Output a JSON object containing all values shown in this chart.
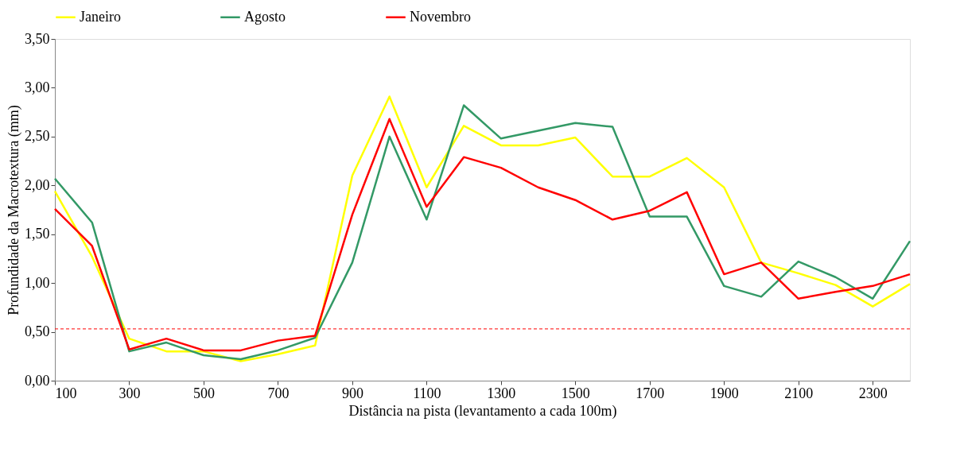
{
  "chart_data": {
    "type": "line",
    "xlabel": "Distância na pista (levantamento a cada 100m)",
    "ylabel": "Profundidade da Macrotextura (mm)",
    "x": [
      100,
      200,
      300,
      400,
      500,
      600,
      700,
      800,
      900,
      1000,
      1100,
      1200,
      1300,
      1400,
      1500,
      1600,
      1700,
      1800,
      1900,
      2000,
      2100,
      2200,
      2300,
      2400
    ],
    "series": [
      {
        "name": "Janeiro",
        "color": "#ffff00",
        "values": [
          1.94,
          1.27,
          0.43,
          0.3,
          0.3,
          0.2,
          0.27,
          0.36,
          2.1,
          2.91,
          1.98,
          2.61,
          2.41,
          2.41,
          2.49,
          2.09,
          2.09,
          2.28,
          1.98,
          1.21,
          1.1,
          0.98,
          0.76,
          0.99
        ]
      },
      {
        "name": "Agosto",
        "color": "#339966",
        "values": [
          2.07,
          1.62,
          0.3,
          0.39,
          0.26,
          0.22,
          0.31,
          0.44,
          1.21,
          2.5,
          1.65,
          2.82,
          2.48,
          2.56,
          2.64,
          2.6,
          1.68,
          1.68,
          0.97,
          0.86,
          1.22,
          1.06,
          0.84,
          1.43
        ]
      },
      {
        "name": "Novembro",
        "color": "#ff0000",
        "values": [
          1.76,
          1.38,
          0.32,
          0.43,
          0.31,
          0.31,
          0.41,
          0.46,
          1.7,
          2.68,
          1.78,
          2.29,
          2.18,
          1.98,
          1.85,
          1.65,
          1.74,
          1.93,
          1.09,
          1.21,
          0.84,
          0.91,
          0.97,
          1.09
        ]
      }
    ],
    "xlim": [
      100,
      2400
    ],
    "xticks": [
      100,
      300,
      500,
      700,
      900,
      1100,
      1300,
      1500,
      1700,
      1900,
      2100,
      2300
    ],
    "ylim": [
      0,
      3.5
    ],
    "yticks": [
      {
        "value": 0,
        "label": "0,00"
      },
      {
        "value": 0.5,
        "label": "0,50"
      },
      {
        "value": 1,
        "label": "1,00"
      },
      {
        "value": 1.5,
        "label": "1,50"
      },
      {
        "value": 2,
        "label": "2,00"
      },
      {
        "value": 2.5,
        "label": "2,50"
      },
      {
        "value": 3,
        "label": "3,00"
      },
      {
        "value": 3.5,
        "label": "3,50"
      }
    ],
    "ref_lines": [
      {
        "axis": "y",
        "value": 0.53,
        "color": "#ff0000",
        "line_style": "dashed"
      }
    ],
    "legend": "top",
    "grid": false,
    "marker": "none",
    "line_style": "solid"
  }
}
